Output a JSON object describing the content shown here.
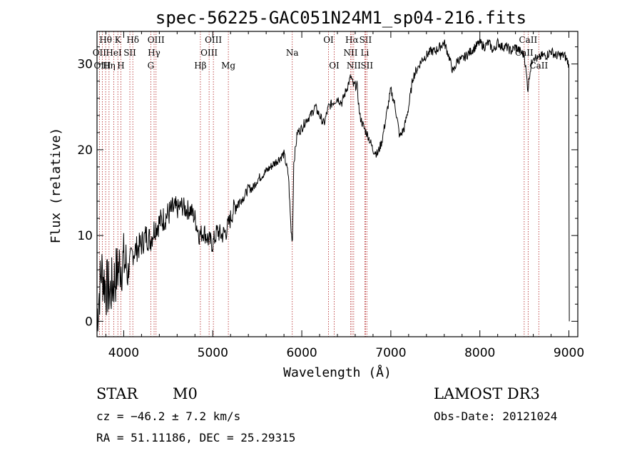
{
  "chart_data": {
    "type": "line",
    "title": "spec-56225-GAC051N24M1_sp04-216.fits",
    "xlabel": "Wavelength (Å)",
    "ylabel": "Flux (relative)",
    "xlim": [
      3700,
      9100
    ],
    "ylim": [
      -1.8,
      33.8
    ],
    "x_ticks": [
      4000,
      5000,
      6000,
      7000,
      8000,
      9000
    ],
    "x_tick_labels": [
      "4000",
      "5000",
      "6000",
      "7000",
      "8000",
      "9000"
    ],
    "y_ticks": [
      0,
      10,
      20,
      30
    ],
    "y_tick_labels": [
      "0",
      "10",
      "20",
      "30"
    ],
    "line_color": "#000000",
    "marker_color": "#b22222",
    "series": [
      {
        "name": "spectrum",
        "x": [
          3700,
          3750,
          3800,
          3850,
          3900,
          3950,
          4000,
          4050,
          4100,
          4150,
          4200,
          4250,
          4300,
          4350,
          4400,
          4450,
          4500,
          4550,
          4600,
          4650,
          4700,
          4750,
          4800,
          4850,
          4900,
          4950,
          5000,
          5050,
          5100,
          5150,
          5200,
          5250,
          5300,
          5350,
          5400,
          5450,
          5500,
          5550,
          5600,
          5650,
          5700,
          5750,
          5800,
          5850,
          5880,
          5895,
          5910,
          5950,
          6000,
          6050,
          6100,
          6150,
          6200,
          6250,
          6300,
          6350,
          6400,
          6450,
          6500,
          6550,
          6580,
          6620,
          6650,
          6700,
          6750,
          6800,
          6850,
          6900,
          6950,
          7000,
          7050,
          7100,
          7150,
          7200,
          7250,
          7300,
          7350,
          7400,
          7450,
          7500,
          7550,
          7600,
          7650,
          7700,
          7750,
          7800,
          7850,
          7900,
          7950,
          8000,
          8050,
          8100,
          8150,
          8200,
          8250,
          8300,
          8350,
          8400,
          8450,
          8500,
          8540,
          8560,
          8600,
          8650,
          8700,
          8750,
          8800,
          8850,
          8900,
          8950,
          9000
        ],
        "y": [
          0.5,
          6.0,
          4.0,
          3.5,
          5.0,
          6.5,
          7.0,
          6.0,
          8.0,
          8.5,
          9.0,
          10.0,
          9.5,
          11.0,
          11.5,
          12.0,
          12.5,
          13.0,
          13.0,
          13.5,
          13.0,
          13.0,
          12.0,
          10.0,
          10.5,
          9.5,
          9.0,
          10.5,
          10.0,
          10.5,
          12.0,
          13.5,
          14.0,
          14.5,
          15.5,
          15.5,
          16.5,
          17.0,
          17.5,
          18.0,
          18.5,
          19.0,
          19.5,
          17.0,
          10.5,
          9.5,
          18.5,
          22.0,
          22.5,
          23.5,
          24.0,
          25.0,
          24.0,
          23.0,
          25.0,
          25.5,
          26.0,
          25.5,
          27.0,
          28.5,
          27.5,
          27.5,
          24.0,
          22.5,
          21.5,
          20.0,
          19.5,
          21.0,
          24.0,
          27.0,
          25.0,
          21.5,
          22.5,
          25.0,
          28.5,
          29.5,
          30.5,
          31.0,
          31.5,
          31.5,
          32.0,
          32.5,
          31.0,
          29.0,
          30.5,
          30.5,
          31.0,
          31.5,
          32.0,
          32.5,
          32.0,
          32.5,
          31.5,
          32.5,
          32.0,
          32.0,
          31.5,
          32.0,
          31.5,
          31.0,
          27.0,
          29.0,
          31.0,
          30.5,
          31.0,
          31.0,
          31.5,
          31.0,
          31.0,
          31.0,
          30.0
        ]
      }
    ],
    "spectral_lines": [
      {
        "label": "Hθ",
        "wavelength": 3797,
        "row": 0
      },
      {
        "label": "K",
        "wavelength": 3934,
        "row": 0
      },
      {
        "label": "Hδ",
        "wavelength": 4102,
        "row": 0
      },
      {
        "label": "OIII",
        "wavelength": 4363,
        "row": 0
      },
      {
        "label": "OIII",
        "wavelength": 5007,
        "row": 0
      },
      {
        "label": "OI",
        "wavelength": 6300,
        "row": 0
      },
      {
        "label": "Hα",
        "wavelength": 6563,
        "row": 0
      },
      {
        "label": "SII",
        "wavelength": 6716,
        "row": 0
      },
      {
        "label": "CaII",
        "wavelength": 8542,
        "row": 0
      },
      {
        "label": "OII",
        "wavelength": 3727,
        "row": 1
      },
      {
        "label": "HeI",
        "wavelength": 3889,
        "row": 1
      },
      {
        "label": "SII",
        "wavelength": 4069,
        "row": 1
      },
      {
        "label": "Hγ",
        "wavelength": 4341,
        "row": 1
      },
      {
        "label": "OIII",
        "wavelength": 4959,
        "row": 1
      },
      {
        "label": "NII",
        "wavelength": 6548,
        "row": 1
      },
      {
        "label": "Li",
        "wavelength": 6708,
        "row": 1
      },
      {
        "label": "CaII",
        "wavelength": 8498,
        "row": 1
      },
      {
        "label": "Hη",
        "wavelength": 3835,
        "row": 2
      },
      {
        "label": "OIII",
        "wavelength": 3760,
        "row": 2
      },
      {
        "label": "H",
        "wavelength": 3968,
        "row": 2
      },
      {
        "label": "G",
        "wavelength": 4304,
        "row": 2
      },
      {
        "label": "Hβ",
        "wavelength": 4861,
        "row": 2
      },
      {
        "label": "Mg",
        "wavelength": 5175,
        "row": 2
      },
      {
        "label": "Na",
        "wavelength": 5893,
        "row": 1
      },
      {
        "label": "OI",
        "wavelength": 6364,
        "row": 2
      },
      {
        "label": "NII",
        "wavelength": 6583,
        "row": 2
      },
      {
        "label": "SII",
        "wavelength": 6731,
        "row": 2
      },
      {
        "label": "CaII",
        "wavelength": 8662,
        "row": 2
      }
    ]
  },
  "info": {
    "object_class": "STAR",
    "subclass": "M0",
    "survey": "LAMOST DR3",
    "cz": "cz = −46.2 ± 7.2 km/s",
    "obs_date": "Obs-Date: 20121024",
    "coords": "RA =  51.11186, DEC =  25.29315"
  }
}
